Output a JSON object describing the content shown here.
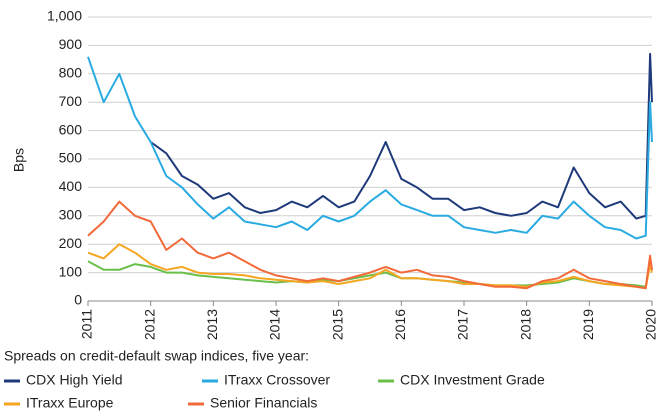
{
  "chart_data": {
    "type": "line",
    "ylabel": "Bps",
    "caption": "Spreads on credit-default swap indices, five year:",
    "x": [
      2011,
      2011.25,
      2011.5,
      2011.75,
      2012,
      2012.25,
      2012.5,
      2012.75,
      2013,
      2013.25,
      2013.5,
      2013.75,
      2014,
      2014.25,
      2014.5,
      2014.75,
      2015,
      2015.25,
      2015.5,
      2015.75,
      2016,
      2016.25,
      2016.5,
      2016.75,
      2017,
      2017.25,
      2017.5,
      2017.75,
      2018,
      2018.25,
      2018.5,
      2018.75,
      2019,
      2019.25,
      2019.5,
      2019.75,
      2019.9,
      2019.97,
      2020
    ],
    "series": [
      {
        "name": "CDX High Yield",
        "color": "#1f3a7a",
        "values": [
          null,
          null,
          null,
          null,
          560,
          520,
          440,
          410,
          360,
          380,
          330,
          310,
          320,
          350,
          330,
          370,
          330,
          350,
          440,
          560,
          430,
          400,
          360,
          360,
          320,
          330,
          310,
          300,
          310,
          350,
          330,
          470,
          380,
          330,
          350,
          290,
          300,
          870,
          700
        ]
      },
      {
        "name": "ITraxx Crossover",
        "color": "#29abe2",
        "values": [
          860,
          700,
          800,
          650,
          560,
          440,
          400,
          340,
          290,
          330,
          280,
          270,
          260,
          280,
          250,
          300,
          280,
          300,
          350,
          390,
          340,
          320,
          300,
          300,
          260,
          250,
          240,
          250,
          240,
          300,
          290,
          350,
          300,
          260,
          250,
          220,
          230,
          700,
          560
        ]
      },
      {
        "name": "CDX Investment Grade",
        "color": "#6abf4b",
        "values": [
          140,
          110,
          110,
          130,
          120,
          100,
          100,
          90,
          85,
          80,
          75,
          70,
          65,
          70,
          65,
          75,
          70,
          80,
          90,
          100,
          80,
          80,
          75,
          70,
          65,
          60,
          55,
          55,
          55,
          60,
          65,
          80,
          70,
          60,
          60,
          55,
          50,
          140,
          110
        ]
      },
      {
        "name": "ITraxx Europe",
        "color": "#f5a623",
        "values": [
          170,
          150,
          200,
          170,
          130,
          110,
          120,
          100,
          95,
          95,
          90,
          80,
          75,
          70,
          65,
          70,
          60,
          70,
          80,
          110,
          80,
          80,
          75,
          70,
          60,
          60,
          55,
          55,
          50,
          65,
          70,
          85,
          70,
          60,
          55,
          50,
          45,
          130,
          100
        ]
      },
      {
        "name": "Senior Financials",
        "color": "#f26a3a",
        "values": [
          230,
          280,
          350,
          300,
          280,
          180,
          220,
          170,
          150,
          170,
          140,
          110,
          90,
          80,
          70,
          80,
          70,
          85,
          100,
          120,
          100,
          110,
          90,
          85,
          70,
          60,
          50,
          50,
          45,
          70,
          80,
          110,
          80,
          70,
          60,
          50,
          45,
          160,
          110
        ]
      }
    ],
    "xlim": [
      2011,
      2020
    ],
    "xticks": [
      2011,
      2012,
      2013,
      2014,
      2015,
      2016,
      2017,
      2018,
      2019,
      2020
    ],
    "ylim": [
      0,
      1000
    ],
    "yticks": [
      0,
      100,
      200,
      300,
      400,
      500,
      600,
      700,
      800,
      900,
      {
        "value": 1000,
        "label": "1,000"
      }
    ],
    "grid": true,
    "legend": "bottom"
  }
}
